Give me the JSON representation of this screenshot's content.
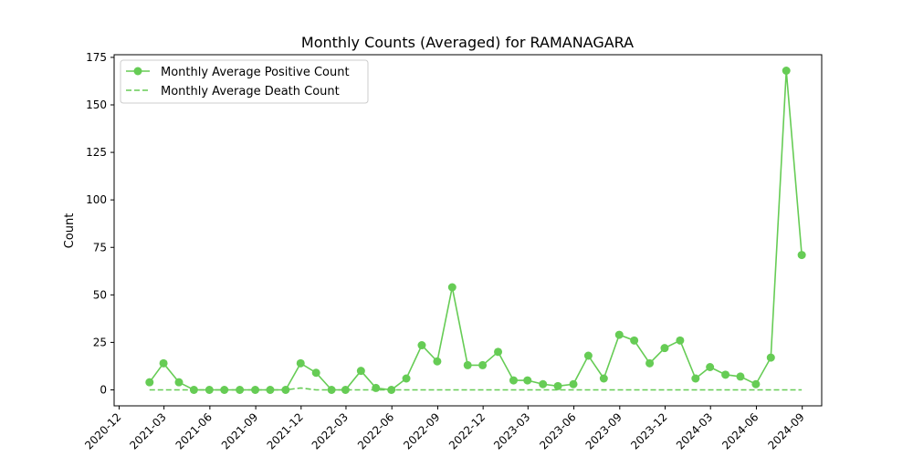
{
  "chart_data": {
    "type": "line",
    "title": "Monthly Counts (Averaged) for RAMANAGARA",
    "xlabel": "",
    "ylabel": "Count",
    "ylim": [
      -8.4,
      176.4
    ],
    "xlim": [
      "2020-11-21",
      "2024-10-10"
    ],
    "grid": false,
    "legend_position": "top-left",
    "y_ticks": [
      0,
      25,
      50,
      75,
      100,
      125,
      150,
      175
    ],
    "x_ticks": [
      "2020-12",
      "2021-03",
      "2021-06",
      "2021-09",
      "2021-12",
      "2022-03",
      "2022-06",
      "2022-09",
      "2022-12",
      "2023-03",
      "2023-06",
      "2023-09",
      "2023-12",
      "2024-03",
      "2024-06",
      "2024-09"
    ],
    "x": [
      "2021-01-31",
      "2021-02-28",
      "2021-03-31",
      "2021-04-30",
      "2021-05-31",
      "2021-06-30",
      "2021-07-31",
      "2021-08-31",
      "2021-09-30",
      "2021-10-31",
      "2021-11-30",
      "2021-12-31",
      "2022-01-31",
      "2022-02-28",
      "2022-03-31",
      "2022-04-30",
      "2022-05-31",
      "2022-06-30",
      "2022-07-31",
      "2022-08-31",
      "2022-09-30",
      "2022-10-31",
      "2022-11-30",
      "2022-12-31",
      "2023-01-31",
      "2023-02-28",
      "2023-03-31",
      "2023-04-30",
      "2023-05-31",
      "2023-06-30",
      "2023-07-31",
      "2023-08-31",
      "2023-09-30",
      "2023-10-31",
      "2023-11-30",
      "2023-12-31",
      "2024-01-31",
      "2024-02-29",
      "2024-03-31",
      "2024-04-30",
      "2024-05-31",
      "2024-06-30",
      "2024-07-31",
      "2024-08-31"
    ],
    "series": [
      {
        "name": "Monthly Average Positive Count",
        "style": "solid-with-markers",
        "color": "#66cc55",
        "values": [
          4,
          14,
          4,
          0,
          0,
          0,
          0,
          0,
          0,
          0,
          14,
          9,
          0,
          0,
          10,
          1,
          0,
          6,
          23.5,
          15,
          54,
          13,
          13,
          20,
          5,
          5,
          3,
          2,
          3,
          18,
          6,
          29,
          26,
          14,
          22,
          26,
          6,
          12,
          8,
          7,
          3,
          17,
          168,
          71
        ]
      },
      {
        "name": "Monthly Average Death Count",
        "style": "dashed",
        "color": "#66cc55",
        "values": [
          0,
          0,
          0,
          0,
          0,
          0,
          0,
          0,
          0,
          0,
          1,
          0,
          0,
          0,
          0,
          0,
          0,
          0,
          0,
          0,
          0,
          0,
          0,
          0,
          0,
          0,
          0,
          0,
          0,
          0,
          0,
          0,
          0,
          0,
          0,
          0,
          0,
          0,
          0,
          0,
          0,
          0,
          0,
          0
        ]
      }
    ]
  }
}
